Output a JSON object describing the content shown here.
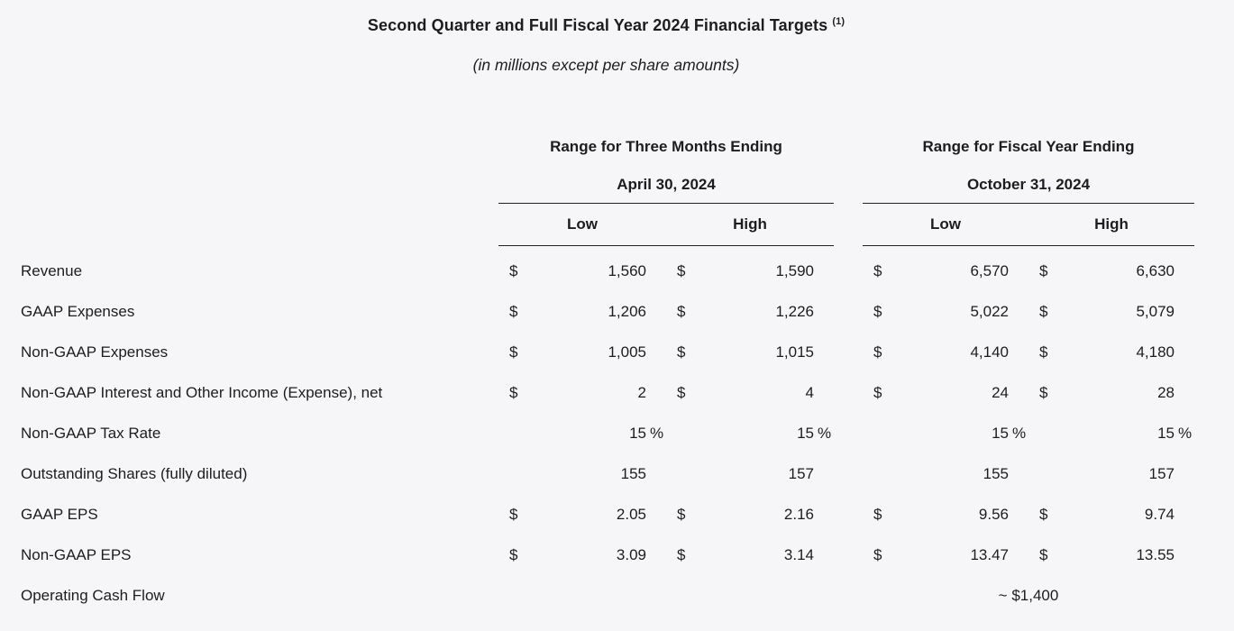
{
  "page": {
    "background_color": "#f6f6f9",
    "text_color": "#1d1d1f"
  },
  "header": {
    "title": "Second Quarter and Full Fiscal Year 2024 Financial Targets",
    "title_superscript": "(1)",
    "subtitle": "(in millions except per share amounts)"
  },
  "table": {
    "column_groups": [
      {
        "title": "Range for Three Months Ending",
        "date": "April 30, 2024",
        "columns": [
          "Low",
          "High"
        ]
      },
      {
        "title": "Range for Fiscal Year Ending",
        "date": "October 31, 2024",
        "columns": [
          "Low",
          "High"
        ]
      }
    ],
    "rows": [
      {
        "label": "Revenue",
        "cells": [
          {
            "prefix": "$",
            "value": "1,560",
            "suffix": ""
          },
          {
            "prefix": "$",
            "value": "1,590",
            "suffix": ""
          },
          {
            "prefix": "$",
            "value": "6,570",
            "suffix": ""
          },
          {
            "prefix": "$",
            "value": "6,630",
            "suffix": ""
          }
        ]
      },
      {
        "label": "GAAP Expenses",
        "cells": [
          {
            "prefix": "$",
            "value": "1,206",
            "suffix": ""
          },
          {
            "prefix": "$",
            "value": "1,226",
            "suffix": ""
          },
          {
            "prefix": "$",
            "value": "5,022",
            "suffix": ""
          },
          {
            "prefix": "$",
            "value": "5,079",
            "suffix": ""
          }
        ]
      },
      {
        "label": "Non-GAAP Expenses",
        "cells": [
          {
            "prefix": "$",
            "value": "1,005",
            "suffix": ""
          },
          {
            "prefix": "$",
            "value": "1,015",
            "suffix": ""
          },
          {
            "prefix": "$",
            "value": "4,140",
            "suffix": ""
          },
          {
            "prefix": "$",
            "value": "4,180",
            "suffix": ""
          }
        ]
      },
      {
        "label": "Non-GAAP Interest and Other Income (Expense), net",
        "cells": [
          {
            "prefix": "$",
            "value": "2",
            "suffix": ""
          },
          {
            "prefix": "$",
            "value": "4",
            "suffix": ""
          },
          {
            "prefix": "$",
            "value": "24",
            "suffix": ""
          },
          {
            "prefix": "$",
            "value": "28",
            "suffix": ""
          }
        ]
      },
      {
        "label": "Non-GAAP Tax Rate",
        "cells": [
          {
            "prefix": "",
            "value": "15",
            "suffix": "%"
          },
          {
            "prefix": "",
            "value": "15",
            "suffix": "%"
          },
          {
            "prefix": "",
            "value": "15",
            "suffix": "%"
          },
          {
            "prefix": "",
            "value": "15",
            "suffix": "%"
          }
        ]
      },
      {
        "label": "Outstanding Shares (fully diluted)",
        "cells": [
          {
            "prefix": "",
            "value": "155",
            "suffix": ""
          },
          {
            "prefix": "",
            "value": "157",
            "suffix": ""
          },
          {
            "prefix": "",
            "value": "155",
            "suffix": ""
          },
          {
            "prefix": "",
            "value": "157",
            "suffix": ""
          }
        ]
      },
      {
        "label": "GAAP EPS",
        "cells": [
          {
            "prefix": "$",
            "value": "2.05",
            "suffix": ""
          },
          {
            "prefix": "$",
            "value": "2.16",
            "suffix": ""
          },
          {
            "prefix": "$",
            "value": "9.56",
            "suffix": ""
          },
          {
            "prefix": "$",
            "value": "9.74",
            "suffix": ""
          }
        ]
      },
      {
        "label": "Non-GAAP EPS",
        "cells": [
          {
            "prefix": "$",
            "value": "3.09",
            "suffix": ""
          },
          {
            "prefix": "$",
            "value": "3.14",
            "suffix": ""
          },
          {
            "prefix": "$",
            "value": "13.47",
            "suffix": ""
          },
          {
            "prefix": "$",
            "value": "13.55",
            "suffix": ""
          }
        ]
      },
      {
        "label": "Operating Cash Flow",
        "fy_value": "~ $1,400"
      }
    ]
  }
}
